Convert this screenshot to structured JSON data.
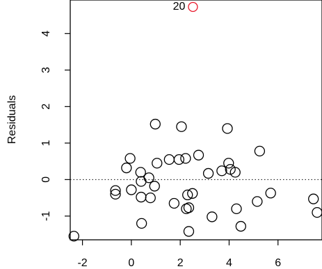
{
  "chart_data": {
    "type": "scatter",
    "title": "",
    "xlabel": "",
    "ylabel": "Residuals",
    "xlim": [
      -2.5,
      7.8
    ],
    "ylim": [
      -1.65,
      4.92
    ],
    "x_ticks": [
      "-2",
      "0",
      "2",
      "4",
      "6"
    ],
    "x_tick_values": [
      -2,
      0,
      2,
      4,
      6
    ],
    "y_ticks": [
      "-1",
      "0",
      "1",
      "2",
      "3",
      "4"
    ],
    "y_tick_values": [
      -1,
      0,
      1,
      2,
      3,
      4
    ],
    "reference_line": {
      "y": 0,
      "style": "dotted"
    },
    "grid": false,
    "points": [
      {
        "x": -2.35,
        "y": -1.55
      },
      {
        "x": -0.65,
        "y": -0.3
      },
      {
        "x": -0.65,
        "y": -0.4
      },
      {
        "x": -0.2,
        "y": 0.32
      },
      {
        "x": -0.05,
        "y": 0.58
      },
      {
        "x": 0.0,
        "y": -0.28
      },
      {
        "x": 0.38,
        "y": 0.2
      },
      {
        "x": 0.4,
        "y": -0.05
      },
      {
        "x": 0.4,
        "y": -0.48
      },
      {
        "x": 0.42,
        "y": -1.2
      },
      {
        "x": 0.72,
        "y": 0.05
      },
      {
        "x": 0.78,
        "y": -0.5
      },
      {
        "x": 0.95,
        "y": -0.18
      },
      {
        "x": 0.98,
        "y": 1.52
      },
      {
        "x": 1.05,
        "y": 0.45
      },
      {
        "x": 1.55,
        "y": 0.55
      },
      {
        "x": 1.75,
        "y": -0.65
      },
      {
        "x": 1.95,
        "y": 0.55
      },
      {
        "x": 2.05,
        "y": 1.45
      },
      {
        "x": 2.22,
        "y": 0.58
      },
      {
        "x": 2.25,
        "y": -0.8
      },
      {
        "x": 2.3,
        "y": -0.42
      },
      {
        "x": 2.35,
        "y": -0.77
      },
      {
        "x": 2.35,
        "y": -1.42
      },
      {
        "x": 2.5,
        "y": -0.38
      },
      {
        "x": 2.75,
        "y": 0.67
      },
      {
        "x": 3.15,
        "y": 0.17
      },
      {
        "x": 3.3,
        "y": -1.02
      },
      {
        "x": 3.7,
        "y": 0.24
      },
      {
        "x": 3.93,
        "y": 1.4
      },
      {
        "x": 3.98,
        "y": 0.45
      },
      {
        "x": 4.05,
        "y": 0.28
      },
      {
        "x": 4.25,
        "y": 0.2
      },
      {
        "x": 4.3,
        "y": -0.8
      },
      {
        "x": 4.48,
        "y": -1.28
      },
      {
        "x": 5.15,
        "y": -0.6
      },
      {
        "x": 5.25,
        "y": 0.78
      },
      {
        "x": 5.7,
        "y": -0.37
      },
      {
        "x": 7.45,
        "y": -0.53
      },
      {
        "x": 7.6,
        "y": -0.9
      }
    ],
    "outlier": {
      "x": 2.52,
      "y": 4.73,
      "label": "20",
      "color": "#e8192c"
    }
  }
}
